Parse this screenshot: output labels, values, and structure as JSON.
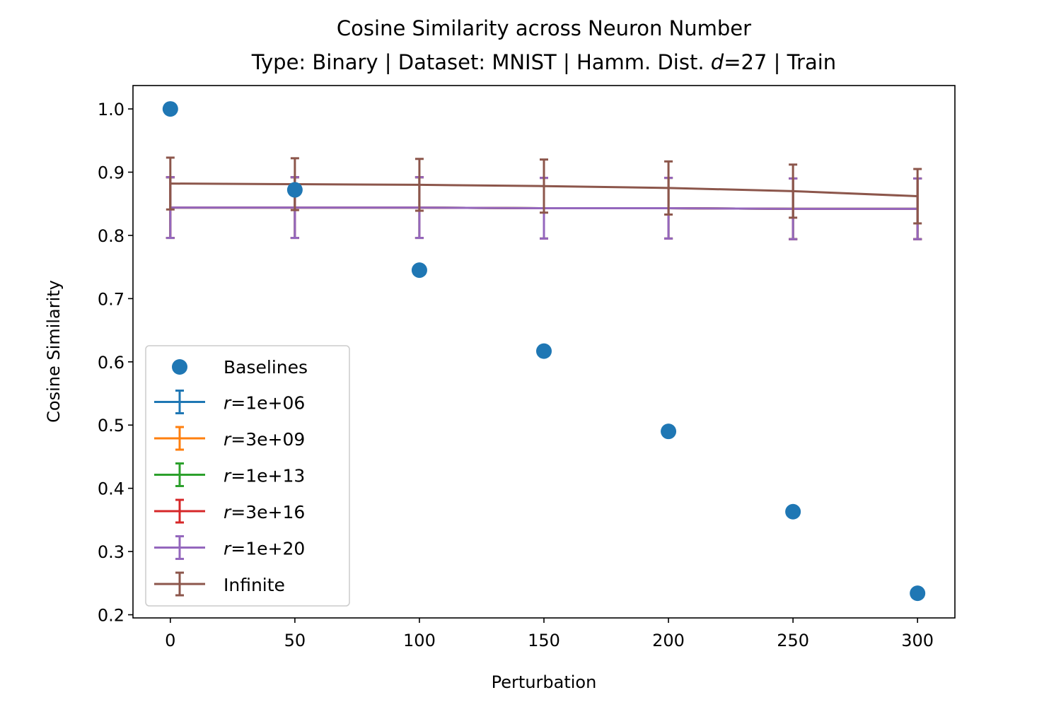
{
  "chart_data": {
    "type": "line",
    "title": "Cosine Similarity across Neuron Number",
    "subtitle_parts": {
      "prefix": "Type: Binary | Dataset: MNIST | Hamm. Dist. ",
      "var": "d",
      "suffix": "=27 | Train"
    },
    "xlabel": "Perturbation",
    "ylabel": "Cosine Similarity",
    "xlim": [
      -15,
      315
    ],
    "ylim": [
      0.195,
      1.037
    ],
    "x_ticks": [
      0,
      50,
      100,
      150,
      200,
      250,
      300
    ],
    "x_tick_labels": [
      "0",
      "50",
      "100",
      "150",
      "200",
      "250",
      "300"
    ],
    "y_ticks": [
      0.2,
      0.3,
      0.4,
      0.5,
      0.6,
      0.7,
      0.8,
      0.9,
      1.0
    ],
    "y_tick_labels": [
      "0.2",
      "0.3",
      "0.4",
      "0.5",
      "0.6",
      "0.7",
      "0.8",
      "0.9",
      "1.0"
    ],
    "x": [
      0,
      50,
      100,
      150,
      200,
      250,
      300
    ],
    "grid": false,
    "legend_position": "lower-left",
    "baselines": {
      "name": "Baselines",
      "color": "#1f77b4",
      "values": [
        1.0,
        0.872,
        0.745,
        0.617,
        0.49,
        0.363,
        0.234
      ]
    },
    "series": [
      {
        "var": "r",
        "label": "=1e+06",
        "color": "#1f77b4",
        "values": [
          0.844,
          0.844,
          0.844,
          0.843,
          0.843,
          0.842,
          0.842
        ],
        "err": [
          0.048,
          0.048,
          0.048,
          0.048,
          0.048,
          0.048,
          0.048
        ]
      },
      {
        "var": "r",
        "label": "=3e+09",
        "color": "#ff7f0e",
        "values": [
          0.844,
          0.844,
          0.844,
          0.843,
          0.843,
          0.842,
          0.842
        ],
        "err": [
          0.048,
          0.048,
          0.048,
          0.048,
          0.048,
          0.048,
          0.048
        ]
      },
      {
        "var": "r",
        "label": "=1e+13",
        "color": "#2ca02c",
        "values": [
          0.844,
          0.844,
          0.844,
          0.843,
          0.843,
          0.842,
          0.842
        ],
        "err": [
          0.048,
          0.048,
          0.048,
          0.048,
          0.048,
          0.048,
          0.048
        ]
      },
      {
        "var": "r",
        "label": "=3e+16",
        "color": "#d62728",
        "values": [
          0.844,
          0.844,
          0.844,
          0.843,
          0.843,
          0.842,
          0.842
        ],
        "err": [
          0.048,
          0.048,
          0.048,
          0.048,
          0.048,
          0.048,
          0.048
        ]
      },
      {
        "var": "r",
        "label": "=1e+20",
        "color": "#9467bd",
        "values": [
          0.844,
          0.844,
          0.844,
          0.843,
          0.843,
          0.842,
          0.842
        ],
        "err": [
          0.048,
          0.048,
          0.048,
          0.048,
          0.048,
          0.048,
          0.048
        ]
      },
      {
        "var": "",
        "label": "Infinite",
        "color": "#8c564b",
        "values": [
          0.882,
          0.881,
          0.88,
          0.878,
          0.875,
          0.87,
          0.862
        ],
        "err": [
          0.041,
          0.041,
          0.041,
          0.042,
          0.042,
          0.042,
          0.043
        ]
      }
    ]
  }
}
